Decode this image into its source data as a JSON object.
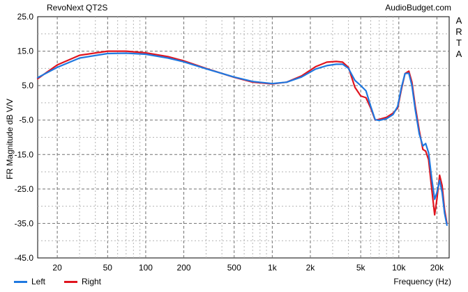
{
  "header": {
    "title": "RevoNext QT2S",
    "site": "AudioBudget.com",
    "side_label": "ARTA"
  },
  "chart_data": {
    "type": "line",
    "title": "RevoNext QT2S",
    "xlabel": "Frequency (Hz)",
    "ylabel": "FR Magnitude dB V/V",
    "x_scale": "log",
    "xlim": [
      14,
      25000
    ],
    "ylim": [
      -45,
      25
    ],
    "grid": true,
    "legend_position": "bottom-left",
    "x_ticks": [
      20,
      50,
      100,
      200,
      500,
      1000,
      2000,
      5000,
      10000,
      20000
    ],
    "x_tick_labels": [
      "20",
      "50",
      "100",
      "200",
      "500",
      "1k",
      "2k",
      "5k",
      "10k",
      "20k"
    ],
    "y_ticks": [
      25,
      15,
      5,
      -5,
      -15,
      -25,
      -35,
      -45
    ],
    "y_tick_labels": [
      "25.0",
      "15.0",
      "5.0",
      "-5.0",
      "-15.0",
      "-25.0",
      "-35.0",
      "-45.0"
    ],
    "series": [
      {
        "name": "Left",
        "color": "#1f78e0",
        "points": [
          [
            14,
            7.3
          ],
          [
            20,
            10.3
          ],
          [
            30,
            13.0
          ],
          [
            50,
            14.3
          ],
          [
            70,
            14.4
          ],
          [
            100,
            14.1
          ],
          [
            150,
            13.0
          ],
          [
            200,
            11.9
          ],
          [
            300,
            9.9
          ],
          [
            500,
            7.5
          ],
          [
            700,
            6.2
          ],
          [
            1000,
            5.6
          ],
          [
            1300,
            6.0
          ],
          [
            1700,
            7.5
          ],
          [
            2200,
            9.8
          ],
          [
            2700,
            10.8
          ],
          [
            3200,
            11.2
          ],
          [
            3600,
            11.2
          ],
          [
            4000,
            10.0
          ],
          [
            4500,
            6.5
          ],
          [
            5000,
            5.0
          ],
          [
            5500,
            3.5
          ],
          [
            6000,
            -1.0
          ],
          [
            6500,
            -4.9
          ],
          [
            7000,
            -5.1
          ],
          [
            8000,
            -4.6
          ],
          [
            9000,
            -3.4
          ],
          [
            9800,
            -1.0
          ],
          [
            10500,
            4.5
          ],
          [
            11200,
            8.5
          ],
          [
            12000,
            8.6
          ],
          [
            12700,
            5.0
          ],
          [
            13500,
            -2.0
          ],
          [
            14500,
            -9.0
          ],
          [
            15500,
            -12.5
          ],
          [
            16300,
            -11.8
          ],
          [
            17200,
            -14.5
          ],
          [
            18200,
            -22.0
          ],
          [
            19200,
            -28.0
          ],
          [
            20000,
            -26.0
          ],
          [
            21000,
            -22.5
          ],
          [
            22000,
            -26.0
          ],
          [
            23000,
            -32.0
          ],
          [
            24000,
            -35.5
          ]
        ]
      },
      {
        "name": "Right",
        "color": "#e0141e",
        "points": [
          [
            14,
            7.0
          ],
          [
            20,
            11.0
          ],
          [
            30,
            13.8
          ],
          [
            50,
            15.0
          ],
          [
            70,
            15.0
          ],
          [
            100,
            14.5
          ],
          [
            150,
            13.4
          ],
          [
            200,
            12.2
          ],
          [
            300,
            10.0
          ],
          [
            500,
            7.4
          ],
          [
            700,
            6.0
          ],
          [
            1000,
            5.5
          ],
          [
            1300,
            6.0
          ],
          [
            1700,
            7.8
          ],
          [
            2200,
            10.5
          ],
          [
            2700,
            11.8
          ],
          [
            3200,
            12.0
          ],
          [
            3600,
            11.8
          ],
          [
            4000,
            10.3
          ],
          [
            4500,
            4.5
          ],
          [
            5000,
            2.0
          ],
          [
            5500,
            1.5
          ],
          [
            6000,
            -1.5
          ],
          [
            6500,
            -5.0
          ],
          [
            7000,
            -4.8
          ],
          [
            8000,
            -4.2
          ],
          [
            9000,
            -3.0
          ],
          [
            9800,
            -1.5
          ],
          [
            10500,
            4.0
          ],
          [
            11200,
            8.5
          ],
          [
            12000,
            9.2
          ],
          [
            12700,
            6.0
          ],
          [
            13500,
            -1.0
          ],
          [
            14500,
            -8.0
          ],
          [
            15500,
            -13.5
          ],
          [
            16300,
            -14.0
          ],
          [
            17200,
            -16.5
          ],
          [
            18200,
            -25.0
          ],
          [
            19200,
            -32.5
          ],
          [
            20000,
            -28.0
          ],
          [
            21000,
            -21.0
          ],
          [
            22000,
            -24.0
          ],
          [
            23000,
            -31.0
          ],
          [
            24000,
            -35.0
          ]
        ]
      }
    ]
  }
}
